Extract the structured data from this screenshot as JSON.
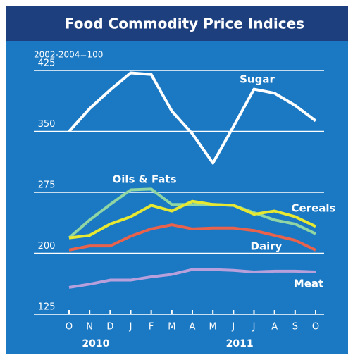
{
  "chart_data": {
    "type": "line",
    "title": "Food Commodity Price Indices",
    "subtitle": "2002-2004=100",
    "categories": [
      "O",
      "N",
      "D",
      "J",
      "F",
      "M",
      "A",
      "M",
      "J",
      "J",
      "A",
      "S",
      "O"
    ],
    "year_labels": [
      "2010",
      "2011"
    ],
    "ylim": [
      125,
      425
    ],
    "yticks": [
      125,
      200,
      275,
      350,
      425
    ],
    "grid": true,
    "series": [
      {
        "name": "Sugar",
        "color": "#ffffff",
        "values": [
          350,
          378,
          401,
          422,
          420,
          375,
          347,
          311,
          356,
          402,
          397,
          382,
          363
        ]
      },
      {
        "name": "Oils & Fats",
        "color": "#8fd6a4",
        "values": [
          219,
          241,
          260,
          278,
          279,
          260,
          260,
          260,
          259,
          250,
          241,
          236,
          224
        ]
      },
      {
        "name": "Cereals",
        "color": "#e6e831",
        "values": [
          219,
          222,
          236,
          245,
          259,
          252,
          264,
          260,
          259,
          248,
          252,
          245,
          233
        ]
      },
      {
        "name": "Dairy",
        "color": "#e8624c",
        "values": [
          204,
          209,
          209,
          221,
          230,
          235,
          230,
          231,
          231,
          228,
          222,
          216,
          204
        ]
      },
      {
        "name": "Meat",
        "color": "#b8a0dc",
        "values": [
          158,
          162,
          167,
          167,
          171,
          174,
          180,
          180,
          179,
          177,
          178,
          178,
          177
        ]
      }
    ]
  }
}
